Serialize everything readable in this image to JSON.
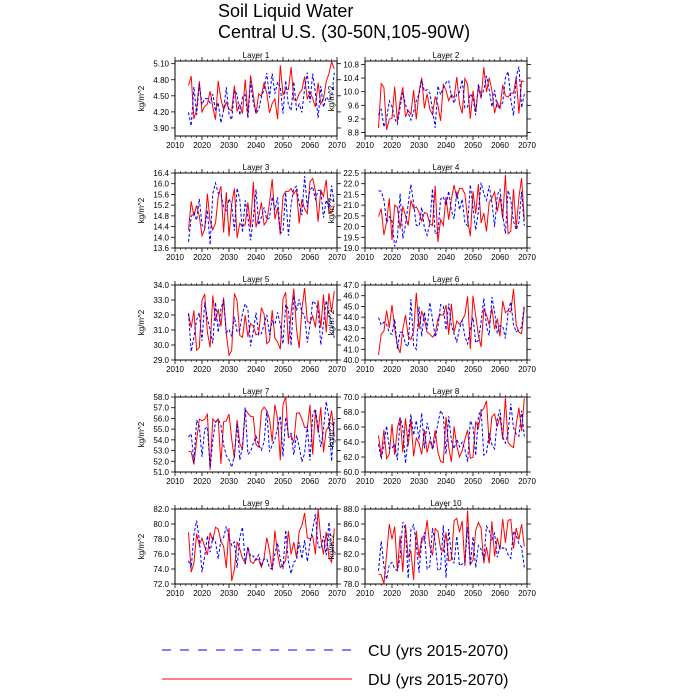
{
  "page": {
    "title_line1": "Soil Liquid Water",
    "title_line2": "Central U.S. (30-50N,105-90W)"
  },
  "legend": [
    {
      "label": "CU (yrs 2015-2070)",
      "color": "#0000ff",
      "dash": "dashed"
    },
    {
      "label": "DU (yrs 2015-2070)",
      "color": "#ff0000",
      "dash": "solid"
    }
  ],
  "chart_data": [
    {
      "type": "line",
      "title": "Layer 1",
      "ylabel": "kg/m^2",
      "xlim": [
        2010,
        2070
      ],
      "ylim": [
        3.75,
        5.15
      ],
      "yticks": [
        3.9,
        4.2,
        4.5,
        4.8,
        5.1
      ],
      "ytick_labels": [
        "3.90",
        "4.20",
        "4.50",
        "4.80",
        "5.10"
      ],
      "xticks": [
        2010,
        2020,
        2030,
        2040,
        2050,
        2060,
        2070
      ],
      "xtick_labels": [
        "2010",
        "2020",
        "2030",
        "2040",
        "2050",
        "2060",
        "2070"
      ]
    },
    {
      "type": "line",
      "title": "Layer 2",
      "ylabel": "kg/m^2",
      "xlim": [
        2010,
        2070
      ],
      "ylim": [
        8.7,
        10.9
      ],
      "yticks": [
        8.8,
        9.2,
        9.6,
        10.0,
        10.4,
        10.8
      ],
      "ytick_labels": [
        "8.8",
        "9.2",
        "9.6",
        "10.0",
        "10.4",
        "10.8"
      ],
      "xticks": [
        2010,
        2020,
        2030,
        2040,
        2050,
        2060,
        2070
      ],
      "xtick_labels": [
        "2010",
        "2020",
        "2030",
        "2040",
        "2050",
        "2060",
        "2070"
      ]
    },
    {
      "type": "line",
      "title": "Layer 3",
      "ylabel": "kg/m^2",
      "xlim": [
        2010,
        2070
      ],
      "ylim": [
        13.6,
        16.4
      ],
      "yticks": [
        13.6,
        14.0,
        14.4,
        14.8,
        15.2,
        15.6,
        16.0,
        16.4
      ],
      "ytick_labels": [
        "13.6",
        "14.0",
        "14.4",
        "14.8",
        "15.2",
        "15.6",
        "16.0",
        "16.4"
      ],
      "xticks": [
        2010,
        2020,
        2030,
        2040,
        2050,
        2060,
        2070
      ],
      "xtick_labels": [
        "2010",
        "2020",
        "2030",
        "2040",
        "2050",
        "2060",
        "2070"
      ]
    },
    {
      "type": "line",
      "title": "Layer 4",
      "ylabel": "kg/m^2",
      "xlim": [
        2010,
        2070
      ],
      "ylim": [
        19.0,
        22.5
      ],
      "yticks": [
        19.0,
        19.5,
        20.0,
        20.5,
        21.0,
        21.5,
        22.0,
        22.5
      ],
      "ytick_labels": [
        "19.0",
        "19.5",
        "20.0",
        "20.5",
        "21.0",
        "21.5",
        "22.0",
        "22.5"
      ],
      "xticks": [
        2010,
        2020,
        2030,
        2040,
        2050,
        2060,
        2070
      ],
      "xtick_labels": [
        "2010",
        "2020",
        "2030",
        "2040",
        "2050",
        "2060",
        "2070"
      ]
    },
    {
      "type": "line",
      "title": "Layer 5",
      "ylabel": "kg/m^2",
      "xlim": [
        2010,
        2070
      ],
      "ylim": [
        29.0,
        34.0
      ],
      "yticks": [
        29.0,
        30.0,
        31.0,
        32.0,
        33.0,
        34.0
      ],
      "ytick_labels": [
        "29.0",
        "30.0",
        "31.0",
        "32.0",
        "33.0",
        "34.0"
      ],
      "xticks": [
        2010,
        2020,
        2030,
        2040,
        2050,
        2060,
        2070
      ],
      "xtick_labels": [
        "2010",
        "2020",
        "2030",
        "2040",
        "2050",
        "2060",
        "2070"
      ]
    },
    {
      "type": "line",
      "title": "Layer 6",
      "ylabel": "kg/m^2",
      "xlim": [
        2010,
        2070
      ],
      "ylim": [
        40.0,
        47.0
      ],
      "yticks": [
        40.0,
        41.0,
        42.0,
        43.0,
        44.0,
        45.0,
        46.0,
        47.0
      ],
      "ytick_labels": [
        "40.0",
        "41.0",
        "42.0",
        "43.0",
        "44.0",
        "45.0",
        "46.0",
        "47.0"
      ],
      "xticks": [
        2010,
        2020,
        2030,
        2040,
        2050,
        2060,
        2070
      ],
      "xtick_labels": [
        "2010",
        "2020",
        "2030",
        "2040",
        "2050",
        "2060",
        "2070"
      ]
    },
    {
      "type": "line",
      "title": "Layer 7",
      "ylabel": "kg/m^2",
      "xlim": [
        2010,
        2070
      ],
      "ylim": [
        51.0,
        58.0
      ],
      "yticks": [
        51.0,
        52.0,
        53.0,
        54.0,
        55.0,
        56.0,
        57.0,
        58.0
      ],
      "ytick_labels": [
        "51.0",
        "52.0",
        "53.0",
        "54.0",
        "55.0",
        "56.0",
        "57.0",
        "58.0"
      ],
      "xticks": [
        2010,
        2020,
        2030,
        2040,
        2050,
        2060,
        2070
      ],
      "xtick_labels": [
        "2010",
        "2020",
        "2030",
        "2040",
        "2050",
        "2060",
        "2070"
      ]
    },
    {
      "type": "line",
      "title": "Layer 8",
      "ylabel": "kg/m^2",
      "xlim": [
        2010,
        2070
      ],
      "ylim": [
        60.0,
        70.0
      ],
      "yticks": [
        60.0,
        62.0,
        64.0,
        66.0,
        68.0,
        70.0
      ],
      "ytick_labels": [
        "60.0",
        "62.0",
        "64.0",
        "66.0",
        "68.0",
        "70.0"
      ],
      "xticks": [
        2010,
        2020,
        2030,
        2040,
        2050,
        2060,
        2070
      ],
      "xtick_labels": [
        "2010",
        "2020",
        "2030",
        "2040",
        "2050",
        "2060",
        "2070"
      ]
    },
    {
      "type": "line",
      "title": "Layer 9",
      "ylabel": "kg/m^2",
      "xlim": [
        2010,
        2070
      ],
      "ylim": [
        72.0,
        82.0
      ],
      "yticks": [
        72.0,
        74.0,
        76.0,
        78.0,
        80.0,
        82.0
      ],
      "ytick_labels": [
        "72.0",
        "74.0",
        "76.0",
        "78.0",
        "80.0",
        "82.0"
      ],
      "xticks": [
        2010,
        2020,
        2030,
        2040,
        2050,
        2060,
        2070
      ],
      "xtick_labels": [
        "2010",
        "2020",
        "2030",
        "2040",
        "2050",
        "2060",
        "2070"
      ]
    },
    {
      "type": "line",
      "title": "Layer 10",
      "ylabel": "kg/m^2",
      "xlim": [
        2010,
        2070
      ],
      "ylim": [
        78.0,
        88.0
      ],
      "yticks": [
        78.0,
        80.0,
        82.0,
        84.0,
        86.0,
        88.0
      ],
      "ytick_labels": [
        "78.0",
        "80.0",
        "82.0",
        "84.0",
        "86.0",
        "88.0"
      ],
      "xticks": [
        2010,
        2020,
        2030,
        2040,
        2050,
        2060,
        2070
      ],
      "xtick_labels": [
        "2010",
        "2020",
        "2030",
        "2040",
        "2050",
        "2060",
        "2070"
      ]
    }
  ]
}
